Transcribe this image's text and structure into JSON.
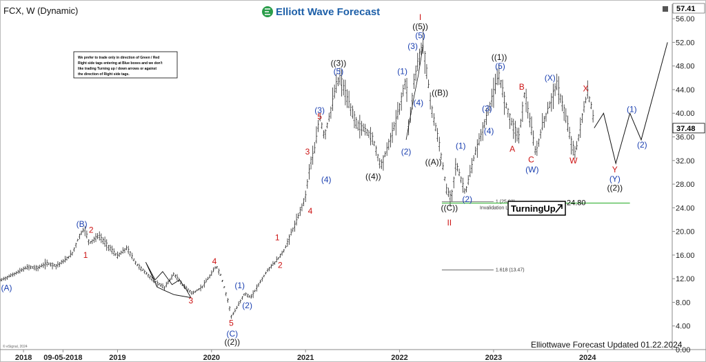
{
  "header": {
    "symbol_title": "FCX, W (Dynamic)",
    "brand": "Elliott Wave Forecast",
    "footer": "Elliottwave Forecast Updated 01.22.2024",
    "copyright": "© eSignal, 2024"
  },
  "note_lines": [
    "We prefer to trade only in direction of Green / Red",
    "Right side tags entering at Blue boxes and we don't",
    "like trading Turning up / down arrows or against",
    "the direction of Right side tags."
  ],
  "badge": {
    "label": "TurningUp",
    "icon": "arrow-up-right-icon"
  },
  "price_tags": {
    "top": "57.41",
    "current": "37.48",
    "current_price": 37.48,
    "invalidation_value": "24.80",
    "invalidation_price": 24.8
  },
  "colors": {
    "blue": "#1a3fb0",
    "red": "#cc1111",
    "black": "#111111",
    "green_line": "#22aa22",
    "candle": "#222222"
  },
  "chart_data": {
    "type": "line",
    "yticks": [
      "56.00",
      "52.00",
      "48.00",
      "44.00",
      "40.00",
      "36.00",
      "32.00",
      "28.00",
      "24.00",
      "20.00",
      "16.00",
      "12.00",
      "8.00",
      "4.00",
      "0.00"
    ],
    "ylim": [
      0,
      58
    ],
    "xlim": [
      2017.75,
      2024.9
    ],
    "xticks": [
      {
        "label": "2018",
        "pos": 2018.0
      },
      {
        "label": "09-05-2018",
        "pos": 2018.42
      },
      {
        "label": "2019",
        "pos": 2019.0
      },
      {
        "label": "2020",
        "pos": 2020.0
      },
      {
        "label": "2021",
        "pos": 2021.0
      },
      {
        "label": "2022",
        "pos": 2022.0
      },
      {
        "label": "2023",
        "pos": 2023.0
      },
      {
        "label": "2024",
        "pos": 2024.0
      }
    ],
    "price_path": [
      [
        2017.75,
        11.7
      ],
      [
        2017.85,
        12.4
      ],
      [
        2017.95,
        13.2
      ],
      [
        2018.05,
        14.0
      ],
      [
        2018.15,
        13.8
      ],
      [
        2018.25,
        14.6
      ],
      [
        2018.35,
        14.2
      ],
      [
        2018.45,
        15.2
      ],
      [
        2018.52,
        16.3
      ],
      [
        2018.6,
        19.4
      ],
      [
        2018.65,
        20.5
      ],
      [
        2018.7,
        18.0
      ],
      [
        2018.8,
        19.3
      ],
      [
        2018.9,
        17.5
      ],
      [
        2019.0,
        15.8
      ],
      [
        2019.1,
        17.2
      ],
      [
        2019.2,
        14.5
      ],
      [
        2019.3,
        13.0
      ],
      [
        2019.4,
        11.5
      ],
      [
        2019.5,
        10.5
      ],
      [
        2019.6,
        12.8
      ],
      [
        2019.7,
        10.8
      ],
      [
        2019.8,
        9.5
      ],
      [
        2019.9,
        10.6
      ],
      [
        2020.0,
        12.8
      ],
      [
        2020.05,
        14.2
      ],
      [
        2020.1,
        12.5
      ],
      [
        2020.18,
        8.0
      ],
      [
        2020.21,
        5.6
      ],
      [
        2020.25,
        6.5
      ],
      [
        2020.35,
        9.5
      ],
      [
        2020.42,
        8.8
      ],
      [
        2020.5,
        11.0
      ],
      [
        2020.6,
        13.5
      ],
      [
        2020.7,
        15.2
      ],
      [
        2020.78,
        17.0
      ],
      [
        2020.85,
        19.8
      ],
      [
        2020.9,
        21.5
      ],
      [
        2021.0,
        26.0
      ],
      [
        2021.05,
        31.5
      ],
      [
        2021.1,
        34.0
      ],
      [
        2021.15,
        39.5
      ],
      [
        2021.2,
        36.0
      ],
      [
        2021.27,
        40.5
      ],
      [
        2021.33,
        45.0
      ],
      [
        2021.37,
        46.0
      ],
      [
        2021.45,
        42.0
      ],
      [
        2021.55,
        38.0
      ],
      [
        2021.65,
        37.0
      ],
      [
        2021.72,
        35.5
      ],
      [
        2021.8,
        31.0
      ],
      [
        2021.87,
        34.0
      ],
      [
        2021.95,
        38.0
      ],
      [
        2022.0,
        41.0
      ],
      [
        2022.07,
        46.0
      ],
      [
        2022.1,
        37.0
      ],
      [
        2022.15,
        45.0
      ],
      [
        2022.2,
        49.0
      ],
      [
        2022.25,
        52.0
      ],
      [
        2022.3,
        45.5
      ],
      [
        2022.35,
        40.0
      ],
      [
        2022.42,
        35.0
      ],
      [
        2022.5,
        27.0
      ],
      [
        2022.55,
        25.5
      ],
      [
        2022.6,
        31.5
      ],
      [
        2022.65,
        29.0
      ],
      [
        2022.7,
        26.5
      ],
      [
        2022.8,
        33.0
      ],
      [
        2022.9,
        38.0
      ],
      [
        2023.0,
        43.5
      ],
      [
        2023.06,
        46.5
      ],
      [
        2023.12,
        42.0
      ],
      [
        2023.2,
        38.0
      ],
      [
        2023.27,
        36.0
      ],
      [
        2023.33,
        43.5
      ],
      [
        2023.4,
        37.5
      ],
      [
        2023.45,
        33.0
      ],
      [
        2023.52,
        38.0
      ],
      [
        2023.6,
        41.5
      ],
      [
        2023.67,
        45.0
      ],
      [
        2023.75,
        40.5
      ],
      [
        2023.82,
        35.5
      ],
      [
        2023.87,
        33.0
      ],
      [
        2023.95,
        40.0
      ],
      [
        2024.0,
        43.5
      ],
      [
        2024.05,
        40.5
      ],
      [
        2024.07,
        37.5
      ]
    ],
    "projection": [
      [
        2024.07,
        37.5
      ],
      [
        2024.17,
        40.0
      ],
      [
        2024.3,
        31.5
      ],
      [
        2024.45,
        40.0
      ],
      [
        2024.57,
        35.5
      ],
      [
        2024.85,
        52.0
      ]
    ],
    "fib_levels": [
      {
        "label": "1 (25.03)",
        "value": 25.03,
        "x0": 2022.45,
        "x1": 2023.0
      },
      {
        "label": "1.618 (13.47)",
        "value": 13.47,
        "x0": 2022.45,
        "x1": 2023.0
      }
    ],
    "invalidation": {
      "label": "Invalidation Level",
      "value": 24.8,
      "x0": 2022.45,
      "x1": 2024.45
    },
    "annotations": [
      {
        "text": "(A)",
        "x": 2017.82,
        "y": 10.0,
        "color": "blue"
      },
      {
        "text": "(B)",
        "x": 2018.62,
        "y": 20.8,
        "color": "blue"
      },
      {
        "text": "2",
        "x": 2018.72,
        "y": 19.8,
        "color": "red"
      },
      {
        "text": "1",
        "x": 2018.66,
        "y": 15.5,
        "color": "red"
      },
      {
        "text": "3",
        "x": 2019.78,
        "y": 7.8,
        "color": "red"
      },
      {
        "text": "4",
        "x": 2020.03,
        "y": 14.5,
        "color": "red"
      },
      {
        "text": "5",
        "x": 2020.21,
        "y": 4.0,
        "color": "red"
      },
      {
        "text": "(C)",
        "x": 2020.22,
        "y": 2.2,
        "color": "blue"
      },
      {
        "text": "((2))",
        "x": 2020.22,
        "y": 0.8,
        "color": "black"
      },
      {
        "text": "(1)",
        "x": 2020.3,
        "y": 10.4,
        "color": "blue"
      },
      {
        "text": "(2)",
        "x": 2020.38,
        "y": 7.0,
        "color": "blue"
      },
      {
        "text": "1",
        "x": 2020.7,
        "y": 18.5,
        "color": "red"
      },
      {
        "text": "2",
        "x": 2020.73,
        "y": 13.8,
        "color": "red"
      },
      {
        "text": "3",
        "x": 2021.02,
        "y": 33.0,
        "color": "red"
      },
      {
        "text": "4",
        "x": 2021.05,
        "y": 23.0,
        "color": "red"
      },
      {
        "text": "5",
        "x": 2021.15,
        "y": 39.0,
        "color": "red"
      },
      {
        "text": "(3)",
        "x": 2021.15,
        "y": 40.0,
        "color": "blue"
      },
      {
        "text": "(4)",
        "x": 2021.22,
        "y": 28.3,
        "color": "blue"
      },
      {
        "text": "(5)",
        "x": 2021.35,
        "y": 46.6,
        "color": "blue"
      },
      {
        "text": "((3))",
        "x": 2021.35,
        "y": 48.0,
        "color": "black"
      },
      {
        "text": "((4))",
        "x": 2021.72,
        "y": 28.8,
        "color": "black"
      },
      {
        "text": "(1)",
        "x": 2022.03,
        "y": 46.6,
        "color": "blue"
      },
      {
        "text": "(2)",
        "x": 2022.07,
        "y": 33.0,
        "color": "blue"
      },
      {
        "text": "(3)",
        "x": 2022.14,
        "y": 50.9,
        "color": "blue"
      },
      {
        "text": "(4)",
        "x": 2022.2,
        "y": 41.3,
        "color": "blue"
      },
      {
        "text": "(5)",
        "x": 2022.22,
        "y": 52.7,
        "color": "blue"
      },
      {
        "text": "((5))",
        "x": 2022.22,
        "y": 54.2,
        "color": "black"
      },
      {
        "text": "I",
        "x": 2022.22,
        "y": 55.8,
        "color": "red"
      },
      {
        "text": "((B))",
        "x": 2022.43,
        "y": 43.0,
        "color": "black"
      },
      {
        "text": "((A))",
        "x": 2022.36,
        "y": 31.3,
        "color": "black"
      },
      {
        "text": "(1)",
        "x": 2022.65,
        "y": 34.0,
        "color": "blue"
      },
      {
        "text": "(2)",
        "x": 2022.72,
        "y": 25.0,
        "color": "blue"
      },
      {
        "text": "((C))",
        "x": 2022.53,
        "y": 23.5,
        "color": "black"
      },
      {
        "text": "II",
        "x": 2022.53,
        "y": 21.0,
        "color": "red"
      },
      {
        "text": "(3)",
        "x": 2022.93,
        "y": 40.3,
        "color": "blue"
      },
      {
        "text": "(4)",
        "x": 2022.95,
        "y": 36.5,
        "color": "blue"
      },
      {
        "text": "(5)",
        "x": 2023.07,
        "y": 47.5,
        "color": "blue"
      },
      {
        "text": "((1))",
        "x": 2023.06,
        "y": 49.0,
        "color": "black"
      },
      {
        "text": "A",
        "x": 2023.2,
        "y": 33.5,
        "color": "red"
      },
      {
        "text": "B",
        "x": 2023.3,
        "y": 44.0,
        "color": "red"
      },
      {
        "text": "C",
        "x": 2023.4,
        "y": 31.7,
        "color": "red"
      },
      {
        "text": "(W)",
        "x": 2023.41,
        "y": 30.0,
        "color": "blue"
      },
      {
        "text": "(X)",
        "x": 2023.6,
        "y": 45.5,
        "color": "blue"
      },
      {
        "text": "W",
        "x": 2023.85,
        "y": 31.5,
        "color": "red"
      },
      {
        "text": "X",
        "x": 2023.98,
        "y": 43.7,
        "color": "red"
      },
      {
        "text": "(1)",
        "x": 2024.47,
        "y": 40.2,
        "color": "blue"
      },
      {
        "text": "(2)",
        "x": 2024.58,
        "y": 34.2,
        "color": "blue"
      },
      {
        "text": "Y",
        "x": 2024.29,
        "y": 30.0,
        "color": "red"
      },
      {
        "text": "(Y)",
        "x": 2024.29,
        "y": 28.4,
        "color": "blue"
      },
      {
        "text": "((2))",
        "x": 2024.29,
        "y": 26.9,
        "color": "black"
      }
    ]
  }
}
